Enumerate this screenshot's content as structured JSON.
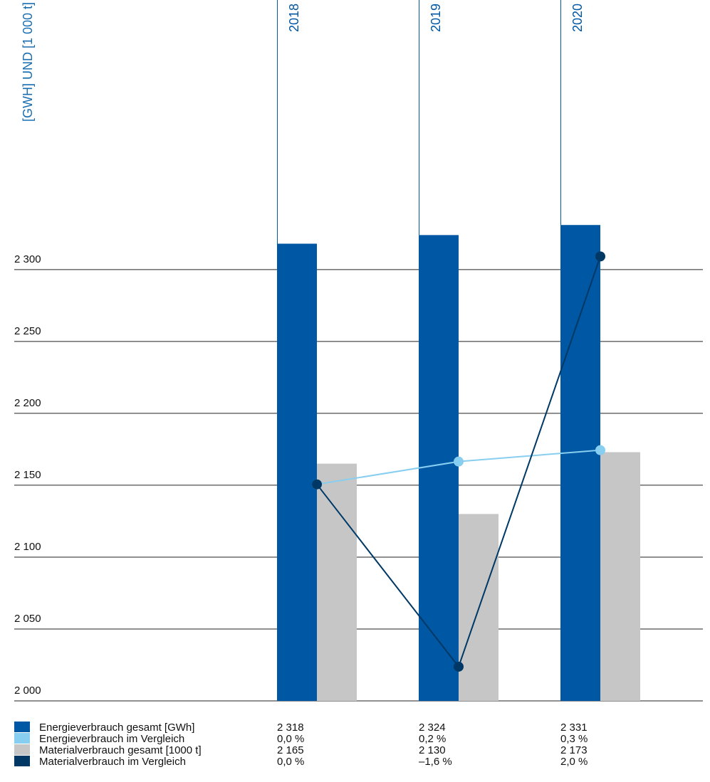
{
  "chart_data": {
    "type": "bar",
    "title": "[GWH] UND [1 000 t]",
    "categories": [
      "2018",
      "2019",
      "2020"
    ],
    "series": [
      {
        "name": "Energieverbrauch gesamt [GWh]",
        "type": "bar",
        "color": "#0057a3",
        "values": [
          2318,
          2324,
          2331
        ],
        "value_labels": [
          "2 318",
          "2 324",
          "2 331"
        ]
      },
      {
        "name": "Energieverbrauch im Vergleich",
        "type": "line",
        "axis": "y2",
        "color": "#87cef0",
        "values": [
          0.0,
          0.2,
          0.3
        ],
        "value_labels": [
          "0,0 %",
          "0,2 %",
          "0,3 %"
        ]
      },
      {
        "name": "Materialverbrauch gesamt [1000 t]",
        "type": "bar",
        "color": "#c6c6c6",
        "values": [
          2165,
          2130,
          2173
        ],
        "value_labels": [
          "2 165",
          "2 130",
          "2 173"
        ]
      },
      {
        "name": "Materialverbrauch im Vergleich",
        "type": "line",
        "axis": "y2",
        "color": "#003865",
        "values": [
          0.0,
          -1.6,
          2.0
        ],
        "value_labels": [
          "0,0 %",
          "–1,6 %",
          "2,0 %"
        ]
      }
    ],
    "ylim": [
      2000,
      2487.5
    ],
    "yticks": [
      {
        "value": 2000,
        "label": "2 000"
      },
      {
        "value": 2050,
        "label": "2 050"
      },
      {
        "value": 2100,
        "label": "2 100"
      },
      {
        "value": 2150,
        "label": "2 150"
      },
      {
        "value": 2200,
        "label": "2 200"
      },
      {
        "value": 2250,
        "label": "2 250"
      },
      {
        "value": 2300,
        "label": "2 300"
      }
    ],
    "y2lim": [
      -1.9,
      4.25
    ],
    "grid": true
  }
}
